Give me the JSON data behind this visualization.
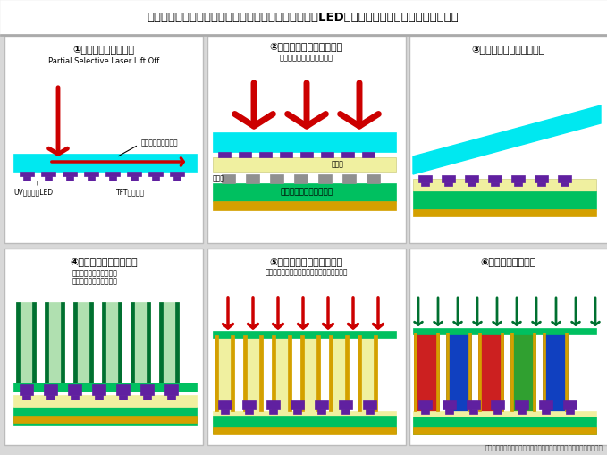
{
  "title": "ブイ・テクノロジーが考案したフレキシブルマイクロLEDディスプレーの製造プロセスフロー",
  "bg_color": "#d8d8d8",
  "white": "#ffffff",
  "black": "#000000",
  "cyan_color": "#00e8f0",
  "green_color": "#00c060",
  "dark_green": "#007030",
  "yellow_light": "#f0f0a0",
  "gold_color": "#d4a000",
  "purple_color": "#6020a0",
  "red_color": "#cc0000",
  "gray_color": "#909090",
  "light_gray": "#c8c8c8",
  "blue_color": "#1040c0",
  "cell_red": "#cc2020",
  "cell_blue": "#1040c0",
  "cell_green": "#30a030",
  "light_green_cell": "#b0e0b0",
  "step1_title": "①レーザーリフトオフ",
  "step1_sub": "Partial Selective Laser Lift Off",
  "step2_title": "②バックプレーンに熱圧着",
  "step2_sub": "（同時に点灯検査も可能）",
  "step3_title": "③サファイアウエハー剥離",
  "step4_title": "④蛍光体セルのリブ形成",
  "step4_sub1": "（レジスト塗布～露光～",
  "step4_sub2": "　現像～クリーニング）",
  "step5_title": "⑤リブ側壁にメタルコート",
  "step5_sub": "（底面だけレーザーアブレーションで剥離）",
  "step6_title": "⑥無機蛍光体を充填",
  "label_sapphire": "サファイアウエハー",
  "label_uvled": "UVマイクロLED",
  "label_tft": "TFT駆動回路",
  "label_bump": "バンプ",
  "label_adhesive": "接着層",
  "label_polyimide": "ポリイミドフィルム基板",
  "footer": "（ブイ・テクノロジーの講演をもとに電子デバイス産業新聞が作成）"
}
